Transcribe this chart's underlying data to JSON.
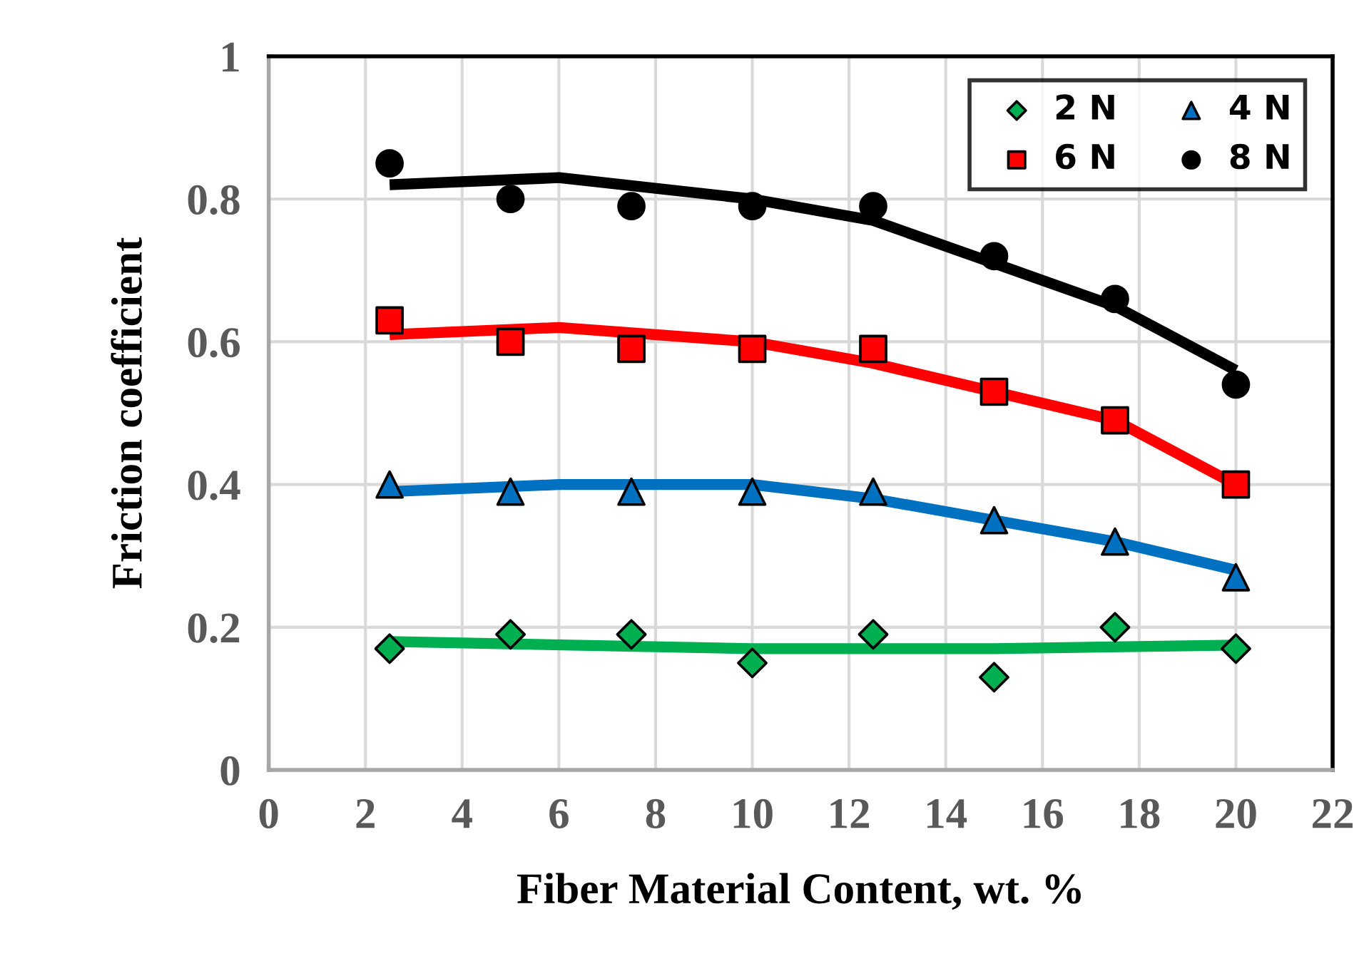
{
  "chart_data": {
    "type": "scatter",
    "xlabel": "Fiber Material Content, wt. %",
    "ylabel": "Friction coefficient",
    "xlim": [
      0,
      22
    ],
    "xticks": [
      0,
      2,
      4,
      6,
      8,
      10,
      12,
      14,
      16,
      18,
      20,
      22
    ],
    "ylim": [
      0,
      1
    ],
    "yticks": [
      0,
      0.2,
      0.4,
      0.6,
      0.8,
      1
    ],
    "grid": true,
    "legend": "top right",
    "x": [
      2.5,
      5,
      7.5,
      10,
      12.5,
      15,
      17.5,
      20
    ],
    "series": [
      {
        "name": "2 N",
        "marker": "diamond",
        "color": "#00b050",
        "values": [
          0.17,
          0.19,
          0.19,
          0.15,
          0.19,
          0.13,
          0.2,
          0.17
        ]
      },
      {
        "name": "4 N",
        "marker": "triangle",
        "color": "#0070c0",
        "values": [
          0.4,
          0.39,
          0.39,
          0.39,
          0.39,
          0.35,
          0.32,
          0.27
        ]
      },
      {
        "name": "6 N",
        "marker": "square",
        "color": "#ff0000",
        "values": [
          0.63,
          0.6,
          0.59,
          0.59,
          0.59,
          0.53,
          0.49,
          0.4
        ]
      },
      {
        "name": "8 N",
        "marker": "circle",
        "color": "#000000",
        "values": [
          0.85,
          0.8,
          0.79,
          0.79,
          0.79,
          0.72,
          0.66,
          0.54
        ]
      },
      {
        "type": "line",
        "color": "#00b050",
        "x": [
          2.5,
          10,
          15,
          20
        ],
        "values": [
          0.18,
          0.17,
          0.17,
          0.175
        ]
      },
      {
        "type": "line",
        "color": "#0070c0",
        "x": [
          2.5,
          6,
          10,
          12.5,
          15,
          17.5,
          20
        ],
        "values": [
          0.39,
          0.4,
          0.4,
          0.38,
          0.35,
          0.32,
          0.28
        ]
      },
      {
        "type": "line",
        "color": "#ff0000",
        "x": [
          2.5,
          6,
          10,
          12.5,
          15,
          17.5,
          20
        ],
        "values": [
          0.61,
          0.62,
          0.6,
          0.57,
          0.53,
          0.49,
          0.4
        ]
      },
      {
        "type": "line",
        "color": "#000000",
        "x": [
          2.5,
          6,
          10,
          12.5,
          15,
          17.5,
          20
        ],
        "values": [
          0.82,
          0.83,
          0.8,
          0.77,
          0.71,
          0.65,
          0.56
        ]
      }
    ]
  }
}
